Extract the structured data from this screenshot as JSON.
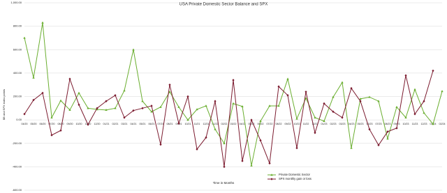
{
  "chart_data": {
    "type": "line",
    "title": "USA Private Domestic Sector Balance and SPX",
    "y_label": "$B and SPX index points",
    "x_label": "Time in Months",
    "categories": [
      "04/20",
      "05/20",
      "06/20",
      "07/20",
      "08/20",
      "09/20",
      "10/20",
      "11/20",
      "12/20",
      "01/21",
      "02/21",
      "03/21",
      "04/21",
      "05/21",
      "06/21",
      "07/21",
      "08/21",
      "09/21",
      "10/21",
      "11/21",
      "12/21",
      "01/22",
      "02/22",
      "03/22",
      "04/22",
      "05/22",
      "06/22",
      "07/22",
      "08/22",
      "09/22",
      "10/22",
      "11/22",
      "12/22",
      "01/23",
      "02/23",
      "03/23",
      "04/23",
      "05/23",
      "06/23",
      "07/23",
      "08/23",
      "09/23",
      "10/23",
      "11/23",
      "12/23",
      "01/24",
      "02/24"
    ],
    "series": [
      {
        "name": "Private Domestic Sector",
        "color": "#6aae2f",
        "marker": "triangle",
        "values": [
          700,
          360,
          830,
          20,
          165,
          85,
          230,
          100,
          90,
          85,
          100,
          250,
          600,
          160,
          70,
          110,
          240,
          110,
          0,
          90,
          120,
          -80,
          -200,
          140,
          115,
          -390,
          -10,
          120,
          120,
          350,
          10,
          185,
          20,
          -10,
          195,
          320,
          -240,
          180,
          195,
          160,
          -160,
          110,
          20,
          260,
          60,
          -35,
          245
        ]
      },
      {
        "name": "SPX monthly gain or loss",
        "color": "#7b1a2e",
        "marker": "diamond",
        "values": [
          50,
          170,
          230,
          -130,
          -90,
          350,
          130,
          -40,
          100,
          160,
          210,
          20,
          80,
          100,
          120,
          -210,
          300,
          -30,
          200,
          -250,
          -150,
          160,
          -400,
          340,
          -350,
          0,
          -175,
          -370,
          285,
          210,
          -240,
          240,
          -110,
          140,
          70,
          20,
          270,
          160,
          -80,
          -215,
          -100,
          -70,
          380,
          50,
          160,
          420,
          null
        ]
      }
    ],
    "ylim": [
      -600,
      1000
    ],
    "yticks": [
      {
        "value": 1000,
        "label": "1,000.00"
      },
      {
        "value": 800,
        "label": "800.00"
      },
      {
        "value": 600,
        "label": "600.00"
      },
      {
        "value": 400,
        "label": "400.00"
      },
      {
        "value": 200,
        "label": "200.00"
      },
      {
        "value": 0,
        "label": "0.00"
      },
      {
        "value": -200,
        "label": "-200.00"
      },
      {
        "value": -400,
        "label": "-400.00"
      },
      {
        "value": -600,
        "label": "-600.00"
      }
    ],
    "grid": true,
    "legend": "bottom"
  }
}
